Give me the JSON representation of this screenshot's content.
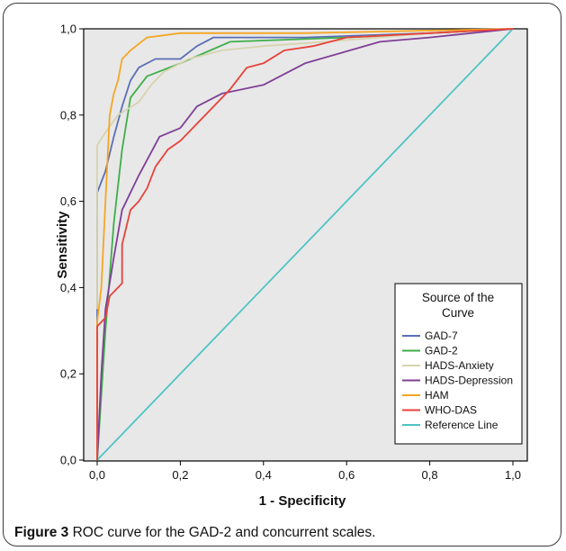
{
  "caption": {
    "label": "Figure 3",
    "text": " ROC curve for the GAD-2 and concurrent scales."
  },
  "chart_data": {
    "type": "line",
    "title": "",
    "xlabel": "1 - Specificity",
    "ylabel": "Sensitivity",
    "xlim": [
      0,
      1
    ],
    "ylim": [
      0,
      1
    ],
    "x_ticks": [
      "0,0",
      "0,2",
      "0,4",
      "0,6",
      "0,8",
      "1,0"
    ],
    "y_ticks": [
      "0,0",
      "0,2",
      "0,4",
      "0,6",
      "0,8",
      "1,0"
    ],
    "grid": false,
    "plot_background": "#e8e8e8",
    "legend": {
      "title_line1": "Source of the",
      "title_line2": "Curve",
      "position": "bottom-right"
    },
    "series": [
      {
        "name": "GAD-7",
        "color": "#5a6fb5",
        "points": [
          [
            0,
            0
          ],
          [
            0,
            0.62
          ],
          [
            0.02,
            0.67
          ],
          [
            0.04,
            0.75
          ],
          [
            0.06,
            0.82
          ],
          [
            0.08,
            0.88
          ],
          [
            0.1,
            0.91
          ],
          [
            0.14,
            0.93
          ],
          [
            0.2,
            0.93
          ],
          [
            0.24,
            0.96
          ],
          [
            0.28,
            0.98
          ],
          [
            0.5,
            0.98
          ],
          [
            0.8,
            0.99
          ],
          [
            1,
            1
          ]
        ]
      },
      {
        "name": "GAD-2",
        "color": "#3fae49",
        "points": [
          [
            0,
            0
          ],
          [
            0.02,
            0.3
          ],
          [
            0.04,
            0.55
          ],
          [
            0.06,
            0.72
          ],
          [
            0.08,
            0.84
          ],
          [
            0.12,
            0.89
          ],
          [
            0.2,
            0.92
          ],
          [
            0.32,
            0.97
          ],
          [
            0.6,
            0.98
          ],
          [
            1,
            1
          ]
        ]
      },
      {
        "name": "HADS-Anxiety",
        "color": "#d6d4ae",
        "points": [
          [
            0,
            0.35
          ],
          [
            0,
            0.73
          ],
          [
            0.02,
            0.76
          ],
          [
            0.05,
            0.8
          ],
          [
            0.1,
            0.83
          ],
          [
            0.13,
            0.87
          ],
          [
            0.16,
            0.9
          ],
          [
            0.22,
            0.93
          ],
          [
            0.3,
            0.95
          ],
          [
            0.4,
            0.96
          ],
          [
            0.55,
            0.97
          ],
          [
            0.8,
            0.99
          ],
          [
            1,
            1
          ]
        ]
      },
      {
        "name": "HADS-Depression",
        "color": "#7f3f96",
        "points": [
          [
            0,
            0
          ],
          [
            0.01,
            0.2
          ],
          [
            0.02,
            0.35
          ],
          [
            0.04,
            0.47
          ],
          [
            0.06,
            0.58
          ],
          [
            0.1,
            0.66
          ],
          [
            0.15,
            0.75
          ],
          [
            0.2,
            0.77
          ],
          [
            0.24,
            0.82
          ],
          [
            0.3,
            0.85
          ],
          [
            0.4,
            0.87
          ],
          [
            0.5,
            0.92
          ],
          [
            0.68,
            0.97
          ],
          [
            0.8,
            0.98
          ],
          [
            1,
            1
          ]
        ]
      },
      {
        "name": "HAM",
        "color": "#f5a623",
        "points": [
          [
            0,
            0
          ],
          [
            0,
            0.32
          ],
          [
            0.01,
            0.4
          ],
          [
            0.02,
            0.6
          ],
          [
            0.03,
            0.8
          ],
          [
            0.04,
            0.85
          ],
          [
            0.05,
            0.88
          ],
          [
            0.06,
            0.93
          ],
          [
            0.08,
            0.95
          ],
          [
            0.12,
            0.98
          ],
          [
            0.2,
            0.99
          ],
          [
            0.5,
            0.99
          ],
          [
            1,
            1
          ]
        ]
      },
      {
        "name": "WHO-DAS",
        "color": "#e8423b",
        "points": [
          [
            0,
            0
          ],
          [
            0,
            0.31
          ],
          [
            0.02,
            0.33
          ],
          [
            0.03,
            0.38
          ],
          [
            0.06,
            0.41
          ],
          [
            0.06,
            0.5
          ],
          [
            0.08,
            0.58
          ],
          [
            0.1,
            0.6
          ],
          [
            0.12,
            0.63
          ],
          [
            0.14,
            0.68
          ],
          [
            0.17,
            0.72
          ],
          [
            0.2,
            0.74
          ],
          [
            0.24,
            0.78
          ],
          [
            0.28,
            0.82
          ],
          [
            0.32,
            0.86
          ],
          [
            0.36,
            0.91
          ],
          [
            0.4,
            0.92
          ],
          [
            0.45,
            0.95
          ],
          [
            0.52,
            0.96
          ],
          [
            0.6,
            0.98
          ],
          [
            0.8,
            0.99
          ],
          [
            1,
            1
          ]
        ]
      },
      {
        "name": "Reference Line",
        "color": "#4fc4c4",
        "points": [
          [
            0,
            0
          ],
          [
            1,
            1
          ]
        ]
      }
    ]
  }
}
